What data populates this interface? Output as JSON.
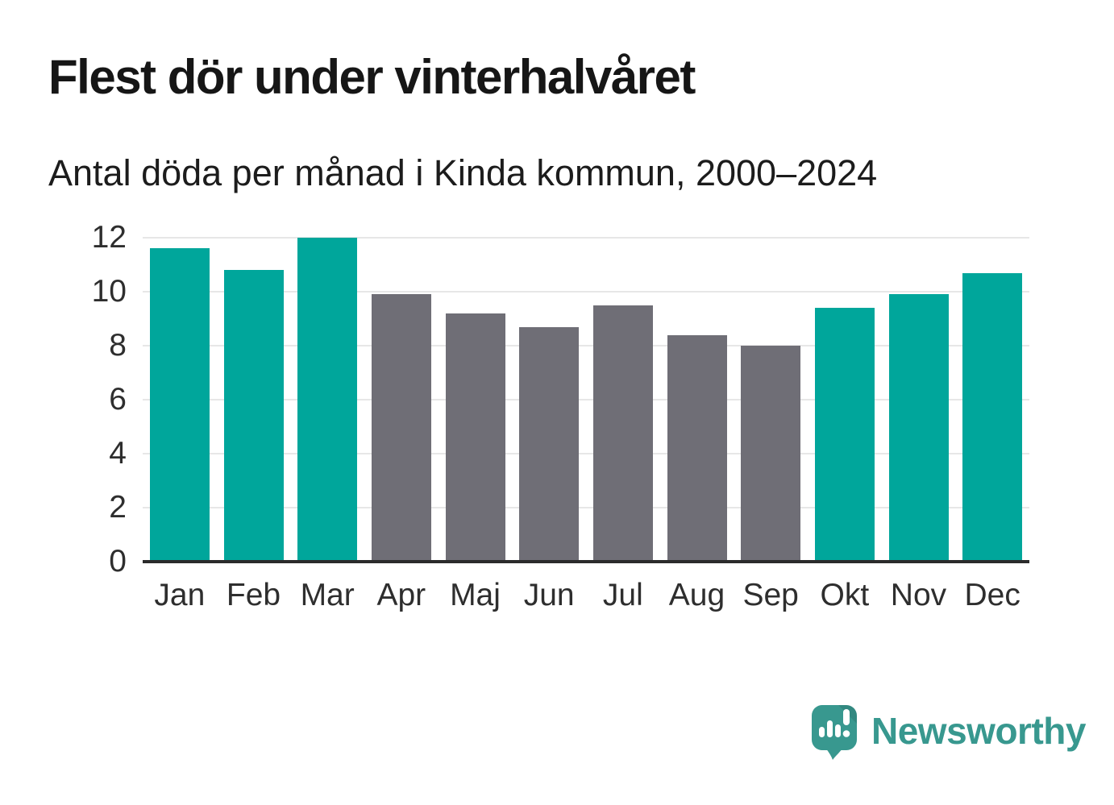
{
  "chart_data": {
    "type": "bar",
    "title": "Flest dör under vinterhalvåret",
    "subtitle": "Antal döda per månad i Kinda kommun, 2000–2024",
    "categories": [
      "Jan",
      "Feb",
      "Mar",
      "Apr",
      "Maj",
      "Jun",
      "Jul",
      "Aug",
      "Sep",
      "Okt",
      "Nov",
      "Dec"
    ],
    "values": [
      11.6,
      10.8,
      12,
      9.9,
      9.2,
      8.7,
      9.5,
      8.4,
      8,
      9.4,
      9.9,
      10.7
    ],
    "bar_roles": [
      "highlight",
      "highlight",
      "highlight",
      "base",
      "base",
      "base",
      "base",
      "base",
      "base",
      "highlight",
      "highlight",
      "highlight"
    ],
    "colors": {
      "highlight": "#00a69b",
      "base": "#6f6e76"
    },
    "xlabel": "",
    "ylabel": "",
    "ylim": [
      0,
      12
    ],
    "yticks": [
      0,
      2,
      4,
      6,
      8,
      10,
      12
    ],
    "grid": true,
    "legend": false
  },
  "footer": {
    "brand": "Newsworthy",
    "brand_color": "#38988f"
  }
}
